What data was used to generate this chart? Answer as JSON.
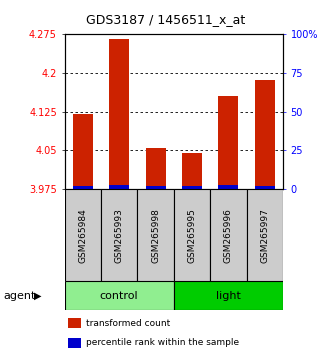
{
  "title": "GDS3187 / 1456511_x_at",
  "samples": [
    "GSM265984",
    "GSM265993",
    "GSM265998",
    "GSM265995",
    "GSM265996",
    "GSM265997"
  ],
  "groups_info": [
    {
      "label": "control",
      "start": 0,
      "end": 2,
      "color": "#90EE90"
    },
    {
      "label": "light",
      "start": 3,
      "end": 5,
      "color": "#00CC00"
    }
  ],
  "red_values": [
    4.12,
    4.265,
    4.055,
    4.045,
    4.155,
    4.185
  ],
  "blue_values": [
    0.006,
    0.008,
    0.007,
    0.006,
    0.008,
    0.007
  ],
  "ymin": 3.975,
  "ymax": 4.275,
  "yticks_left": [
    3.975,
    4.05,
    4.125,
    4.2,
    4.275
  ],
  "yticks_right": [
    0,
    25,
    50,
    75,
    100
  ],
  "bar_width": 0.55,
  "bar_color_red": "#CC2200",
  "bar_color_blue": "#0000CC",
  "bg_color_sample": "#CCCCCC",
  "legend_labels": [
    "transformed count",
    "percentile rank within the sample"
  ]
}
